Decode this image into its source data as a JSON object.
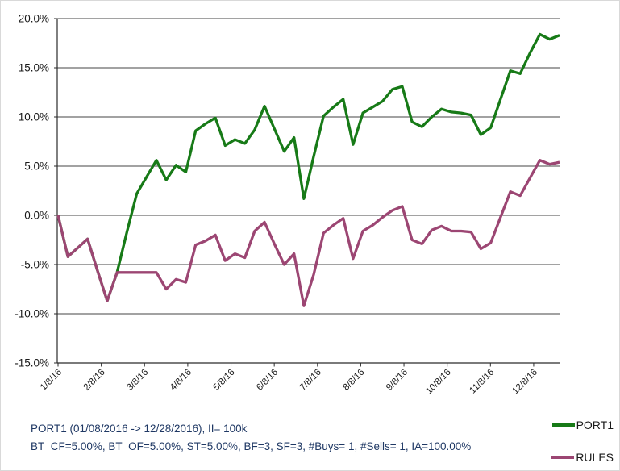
{
  "footer": {
    "line1": "PORT1 (01/08/2016 -> 12/28/2016), II= 100k",
    "line2": "BT_CF=5.00%, BT_OF=5.00%, ST=5.00%, BF=3, SF=3, #Buys= 1, #Sells= 1, IA=100.00%",
    "color": "#1f3864"
  },
  "legend": {
    "items": [
      {
        "label": "PORT1",
        "color": "#177a17"
      },
      {
        "label": "RULES",
        "color": "#9c4673"
      }
    ]
  },
  "colors": {
    "port1_line": "#177a17",
    "rules_line": "#9c4673",
    "gridline": "#444444",
    "axis": "#2b2b2b",
    "tick_label": "#1a1a1a",
    "background": "#ffffff"
  },
  "chart_data": {
    "type": "line",
    "title": "",
    "xlabel": "",
    "ylabel": "",
    "grid": "horizontal",
    "legend_position": "bottom-right",
    "ylim": [
      -15,
      20
    ],
    "y_tick_values": [
      20,
      15,
      10,
      5,
      0,
      -5,
      -10,
      -15
    ],
    "y_tick_labels": [
      "20.0%",
      "15.0%",
      "10.0%",
      "5.0%",
      "0.0%",
      "-5.0%",
      "-10.0%",
      "-15.0%"
    ],
    "x_tick_labels": [
      "1/8/16",
      "2/8/16",
      "3/8/16",
      "4/8/16",
      "5/8/16",
      "6/8/16",
      "7/8/16",
      "8/8/16",
      "9/8/16",
      "10/8/16",
      "11/8/16",
      "12/8/16"
    ],
    "x_start_date": "01/08/2016",
    "x_end_date": "12/28/2016",
    "x_frequency": "weekly",
    "series": [
      {
        "name": "PORT1",
        "color": "#177a17",
        "values": [
          0.0,
          -4.2,
          -3.3,
          -2.4,
          -5.6,
          -8.7,
          -5.8,
          -1.7,
          2.2,
          3.9,
          5.6,
          3.6,
          5.1,
          4.4,
          8.6,
          9.3,
          9.9,
          7.1,
          7.7,
          7.3,
          8.7,
          11.1,
          8.8,
          6.5,
          7.9,
          1.7,
          6.0,
          10.1,
          11.0,
          11.8,
          7.2,
          10.4,
          11.0,
          11.6,
          12.8,
          13.1,
          9.5,
          9.0,
          10.0,
          10.8,
          10.5,
          10.4,
          10.2,
          8.2,
          8.9,
          11.8,
          14.7,
          14.4,
          16.5,
          18.4,
          17.9,
          18.3
        ]
      },
      {
        "name": "RULES",
        "color": "#9c4673",
        "values": [
          0.0,
          -4.2,
          -3.3,
          -2.4,
          -5.6,
          -8.7,
          -5.8,
          -5.8,
          -5.8,
          -5.8,
          -5.8,
          -7.5,
          -6.5,
          -6.8,
          -3.0,
          -2.6,
          -2.0,
          -4.6,
          -3.9,
          -4.3,
          -1.6,
          -0.7,
          -2.9,
          -5.0,
          -3.9,
          -9.2,
          -6.0,
          -1.8,
          -1.0,
          -0.3,
          -4.4,
          -1.6,
          -1.0,
          -0.2,
          0.5,
          0.9,
          -2.5,
          -2.9,
          -1.5,
          -1.1,
          -1.6,
          -1.6,
          -1.7,
          -3.4,
          -2.8,
          -0.2,
          2.4,
          2.0,
          3.8,
          5.6,
          5.2,
          5.4
        ]
      }
    ]
  }
}
